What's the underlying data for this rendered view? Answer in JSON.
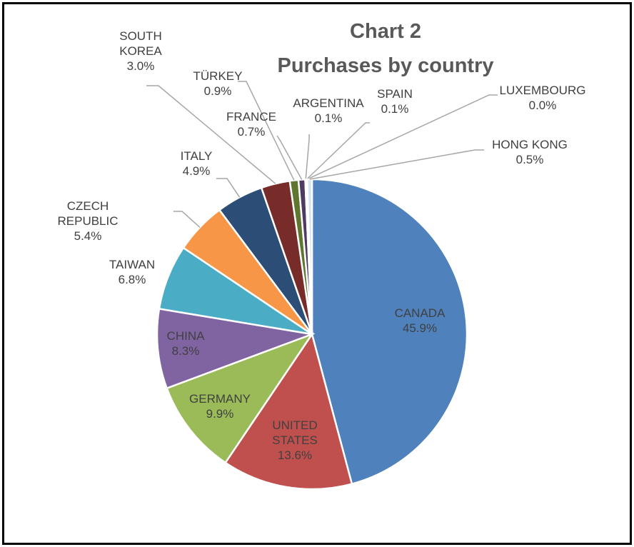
{
  "chart_data": {
    "type": "pie",
    "title": "Chart 2",
    "subtitle": "Purchases by country",
    "categories": [
      "CANADA",
      "UNITED STATES",
      "GERMANY",
      "CHINA",
      "TAIWAN",
      "CZECH REPUBLIC",
      "ITALY",
      "SOUTH KOREA",
      "TÜRKEY",
      "FRANCE",
      "ARGENTINA",
      "SPAIN",
      "LUXEMBOURG",
      "HONG KONG"
    ],
    "values": [
      45.9,
      13.6,
      9.9,
      8.3,
      6.8,
      5.4,
      4.9,
      3.0,
      0.9,
      0.7,
      0.1,
      0.1,
      0.0,
      0.5
    ],
    "value_labels": [
      "45.9%",
      "13.6%",
      "9.9%",
      "8.3%",
      "6.8%",
      "5.4%",
      "4.9%",
      "3.0%",
      "0.9%",
      "0.7%",
      "0.1%",
      "0.1%",
      "0.0%",
      "0.5%"
    ],
    "colors": [
      "#4f81bd",
      "#c0504d",
      "#9bbb59",
      "#8064a2",
      "#4bacc6",
      "#f79646",
      "#2c4d75",
      "#772c2a",
      "#5f7530",
      "#4d3b62",
      "#276a7c",
      "#b65708",
      "#729aca",
      "#d6e4f2"
    ]
  }
}
